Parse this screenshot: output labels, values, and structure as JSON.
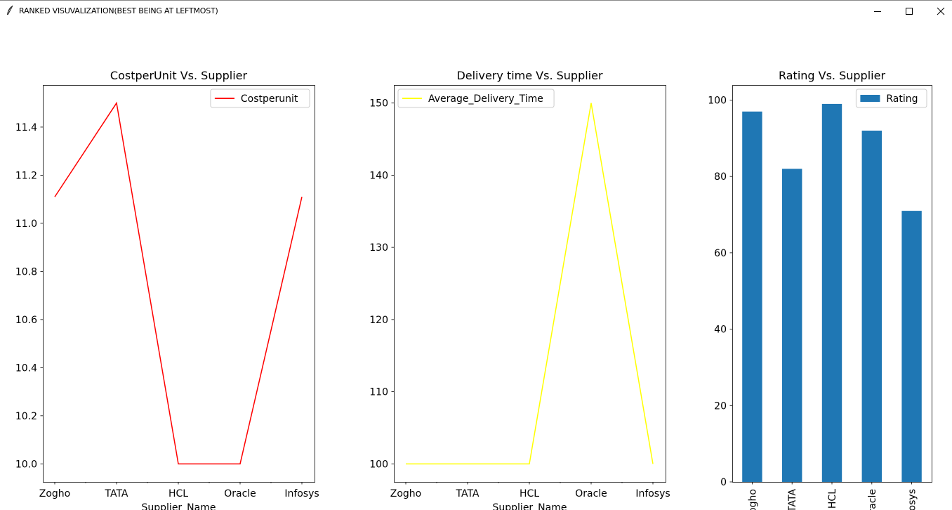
{
  "window": {
    "title": "RANKED VISUVALIZATION(BEST BEING AT LEFTMOST)",
    "app_icon": "feather-icon",
    "controls": [
      "minimize-icon",
      "maximize-icon",
      "close-icon"
    ]
  },
  "chart_data": [
    {
      "type": "line",
      "title": "CostperUnit Vs. Supplier",
      "xlabel": "Supplier_Name",
      "ylabel": "",
      "categories": [
        "Zogho",
        "TATA",
        "HCL",
        "Oracle",
        "Infosys"
      ],
      "series": [
        {
          "name": "Costperunit",
          "values": [
            11.11,
            11.5,
            10.0,
            10.0,
            11.11
          ],
          "color": "#ff0000"
        }
      ],
      "yticks": [
        "10.0",
        "10.2",
        "10.4",
        "10.6",
        "10.8",
        "11.0",
        "11.2",
        "11.4"
      ],
      "ylim": [
        9.925,
        11.575
      ],
      "legend": "upper right",
      "grid": false
    },
    {
      "type": "line",
      "title": "Delivery time Vs. Supplier",
      "xlabel": "Supplier_Name",
      "ylabel": "",
      "categories": [
        "Zogho",
        "TATA",
        "HCL",
        "Oracle",
        "Infosys"
      ],
      "series": [
        {
          "name": "Average_Delivery_Time",
          "values": [
            100,
            100,
            100,
            150,
            100
          ],
          "color": "#ffff00"
        }
      ],
      "yticks": [
        "100",
        "110",
        "120",
        "130",
        "140",
        "150"
      ],
      "ylim": [
        97.5,
        152.5
      ],
      "legend": "upper left",
      "grid": false
    },
    {
      "type": "bar",
      "title": "Rating Vs. Supplier",
      "xlabel": "",
      "ylabel": "",
      "categories": [
        "Zogho",
        "TATA",
        "HCL",
        "Oracle",
        "Infosys"
      ],
      "series": [
        {
          "name": "Rating",
          "values": [
            97,
            82,
            99,
            92,
            71
          ],
          "color": "#1f77b4"
        }
      ],
      "yticks": [
        "0",
        "20",
        "40",
        "60",
        "80",
        "100"
      ],
      "ylim": [
        0,
        103.95
      ],
      "legend": "upper right",
      "grid": false
    }
  ]
}
